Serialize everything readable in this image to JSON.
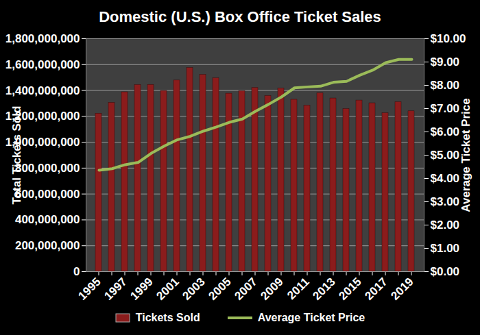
{
  "chart_data": {
    "type": "bar",
    "title": "Domestic (U.S.) Box Office Ticket Sales",
    "categories": [
      "1995",
      null,
      "1997",
      null,
      "1999",
      null,
      "2001",
      null,
      "2003",
      null,
      "2005",
      null,
      "2007",
      null,
      "2009",
      null,
      "2011",
      null,
      "2013",
      null,
      "2015",
      null,
      "2017",
      null,
      "2019"
    ],
    "series": [
      {
        "name": "Tickets Sold",
        "type": "bar",
        "color": "#8b1c1c",
        "values": [
          1221700000,
          1305000000,
          1387000000,
          1443000000,
          1444000000,
          1397000000,
          1478000000,
          1575000000,
          1521000000,
          1495000000,
          1376000000,
          1395000000,
          1420000000,
          1358000000,
          1415000000,
          1329000000,
          1283000000,
          1380000000,
          1339000000,
          1257000000,
          1323000000,
          1302000000,
          1225000000,
          1311000000,
          1240000000
        ]
      },
      {
        "name": "Average Ticket Price",
        "type": "line",
        "axis": "y2",
        "color": "#9bbb59",
        "values": [
          4.35,
          4.42,
          4.59,
          4.69,
          5.08,
          5.39,
          5.66,
          5.81,
          6.03,
          6.21,
          6.41,
          6.55,
          6.88,
          7.18,
          7.5,
          7.89,
          7.93,
          7.96,
          8.13,
          8.17,
          8.43,
          8.65,
          8.97,
          9.11,
          9.11
        ]
      }
    ],
    "y_label": "Total Tickets Sold",
    "y2_label": "Average Ticket Price",
    "ylim": [
      0,
      1800000000
    ],
    "yticks": [
      0,
      {
        "value": 200000000,
        "label": "200,000,000"
      },
      {
        "value": 400000000,
        "label": "400,000,000"
      },
      {
        "value": 600000000,
        "label": "600,000,000"
      },
      {
        "value": 800000000,
        "label": "800,000,000"
      },
      {
        "value": 1000000000,
        "label": "1,000,000,000"
      },
      {
        "value": 1200000000,
        "label": "1,200,000,000"
      },
      {
        "value": 1400000000,
        "label": "1,400,000,000"
      },
      {
        "value": 1600000000,
        "label": "1,600,000,000"
      },
      {
        "value": 1800000000,
        "label": "1,800,000,000"
      }
    ],
    "y2lim": [
      0,
      10
    ],
    "y2ticks": [
      {
        "value": 0,
        "label": "$0.00"
      },
      {
        "value": 1,
        "label": "$1.00"
      },
      {
        "value": 2,
        "label": "$2.00"
      },
      {
        "value": 3,
        "label": "$3.00"
      },
      {
        "value": 4,
        "label": "$4.00"
      },
      {
        "value": 5,
        "label": "$5.00"
      },
      {
        "value": 6,
        "label": "$6.00"
      },
      {
        "value": 7,
        "label": "$7.00"
      },
      {
        "value": 8,
        "label": "$8.00"
      },
      {
        "value": 9,
        "label": "$9.00"
      },
      {
        "value": 10,
        "label": "$10.00"
      }
    ],
    "grid": true,
    "legend": "bottom"
  }
}
